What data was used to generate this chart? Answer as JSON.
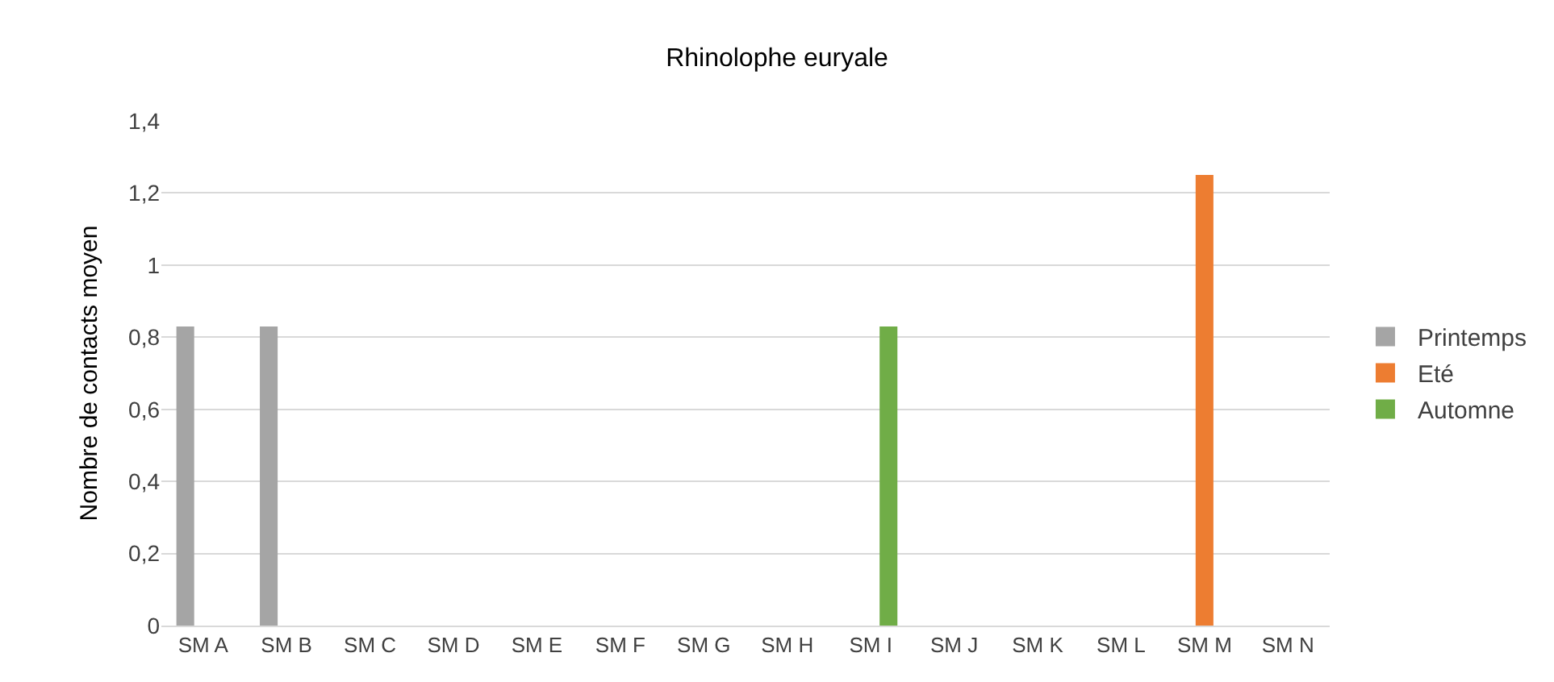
{
  "chart_data": {
    "type": "bar",
    "title": "Rhinolophe euryale",
    "ylabel": "Nombre de contacts moyen",
    "categories": [
      "SM A",
      "SM B",
      "SM C",
      "SM D",
      "SM E",
      "SM F",
      "SM G",
      "SM H",
      "SM I",
      "SM J",
      "SM K",
      "SM L",
      "SM M",
      "SM N"
    ],
    "series": [
      {
        "name": "Printemps",
        "color": "#a5a5a5",
        "values": [
          0.83,
          0.83,
          0,
          0,
          0,
          0,
          0,
          0,
          0,
          0,
          0,
          0,
          0,
          0
        ]
      },
      {
        "name": "Eté",
        "color": "#ed7d31",
        "values": [
          0,
          0,
          0,
          0,
          0,
          0,
          0,
          0,
          0,
          0,
          0,
          0,
          1.25,
          0
        ]
      },
      {
        "name": "Automne",
        "color": "#70ad47",
        "values": [
          0,
          0,
          0,
          0,
          0,
          0,
          0,
          0,
          0.83,
          0,
          0,
          0,
          0,
          0
        ]
      }
    ],
    "ylim": [
      0,
      1.4
    ],
    "yticks": [
      0,
      {
        "value": 0.2,
        "label": "0,2"
      },
      {
        "value": 0.4,
        "label": "0,4"
      },
      {
        "value": 0.6,
        "label": "0,6"
      },
      {
        "value": 0.8,
        "label": "0,8"
      },
      1,
      {
        "value": 1.2,
        "label": "1,2"
      },
      {
        "value": 1.4,
        "label": "1,4"
      }
    ],
    "grid": "y",
    "legend": "right"
  }
}
